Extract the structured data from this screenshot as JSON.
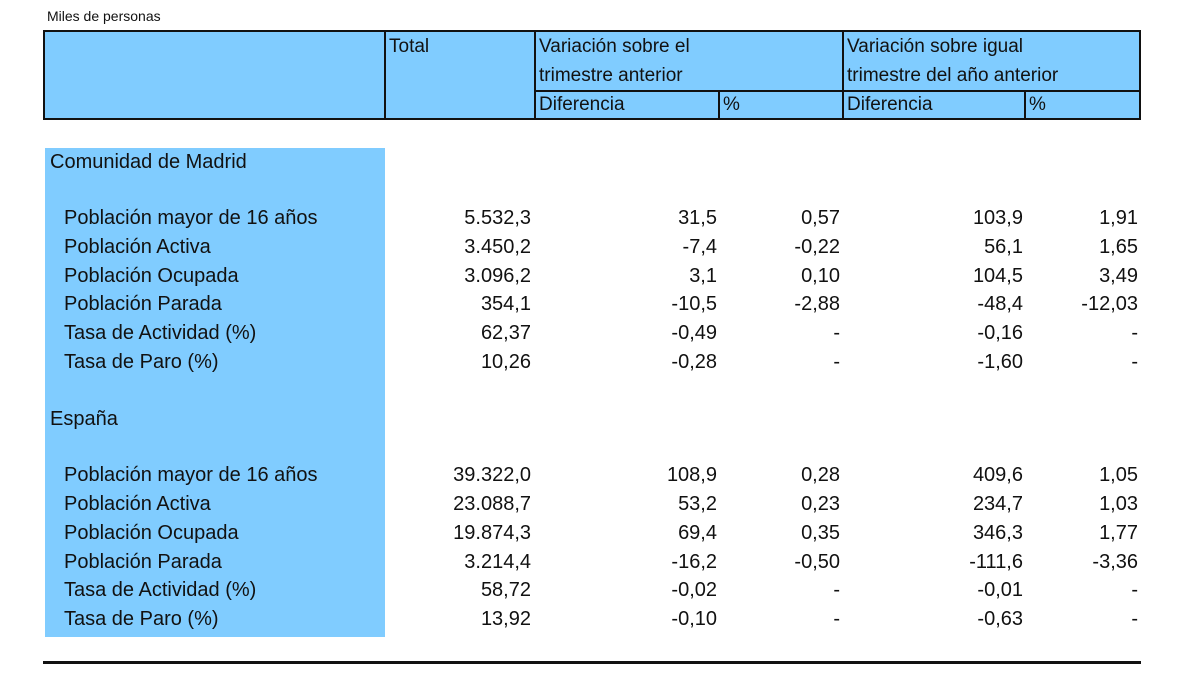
{
  "unit_label": "Miles de personas",
  "header": {
    "total": "Total",
    "group1_line1": "Variación sobre el",
    "group1_line2": "trimestre anterior",
    "group2_line1": "Variación sobre igual",
    "group2_line2": "trimestre del año anterior",
    "diff1": "Diferencia",
    "pct1": "%",
    "diff2": "Diferencia",
    "pct2": "%"
  },
  "sections": [
    {
      "title": "Comunidad de Madrid",
      "rows": [
        {
          "label": "Población mayor de 16 años",
          "total": "5.532,3",
          "diff_q": "31,5",
          "pct_q": "0,57",
          "diff_y": "103,9",
          "pct_y": "1,91"
        },
        {
          "label": "Población Activa",
          "total": "3.450,2",
          "diff_q": "-7,4",
          "pct_q": "-0,22",
          "diff_y": "56,1",
          "pct_y": "1,65"
        },
        {
          "label": "Población Ocupada",
          "total": "3.096,2",
          "diff_q": "3,1",
          "pct_q": "0,10",
          "diff_y": "104,5",
          "pct_y": "3,49"
        },
        {
          "label": "Población Parada",
          "total": "354,1",
          "diff_q": "-10,5",
          "pct_q": "-2,88",
          "diff_y": "-48,4",
          "pct_y": "-12,03"
        },
        {
          "label": "Tasa de Actividad (%)",
          "total": "62,37",
          "diff_q": "-0,49",
          "pct_q": "-",
          "diff_y": "-0,16",
          "pct_y": "-"
        },
        {
          "label": "Tasa de Paro (%)",
          "total": "10,26",
          "diff_q": "-0,28",
          "pct_q": "-",
          "diff_y": "-1,60",
          "pct_y": "-"
        }
      ]
    },
    {
      "title": "España",
      "rows": [
        {
          "label": "Población mayor de 16 años",
          "total": "39.322,0",
          "diff_q": "108,9",
          "pct_q": "0,28",
          "diff_y": "409,6",
          "pct_y": "1,05"
        },
        {
          "label": "Población Activa",
          "total": "23.088,7",
          "diff_q": "53,2",
          "pct_q": "0,23",
          "diff_y": "234,7",
          "pct_y": "1,03"
        },
        {
          "label": "Población Ocupada",
          "total": "19.874,3",
          "diff_q": "69,4",
          "pct_q": "0,35",
          "diff_y": "346,3",
          "pct_y": "1,77"
        },
        {
          "label": "Población Parada",
          "total": "3.214,4",
          "diff_q": "-16,2",
          "pct_q": "-0,50",
          "diff_y": "-111,6",
          "pct_y": "-3,36"
        },
        {
          "label": "Tasa de Actividad (%)",
          "total": "58,72",
          "diff_q": "-0,02",
          "pct_q": "-",
          "diff_y": "-0,01",
          "pct_y": "-"
        },
        {
          "label": "Tasa de Paro (%)",
          "total": "13,92",
          "diff_q": "-0,10",
          "pct_q": "-",
          "diff_y": "-0,63",
          "pct_y": "-"
        }
      ]
    }
  ]
}
